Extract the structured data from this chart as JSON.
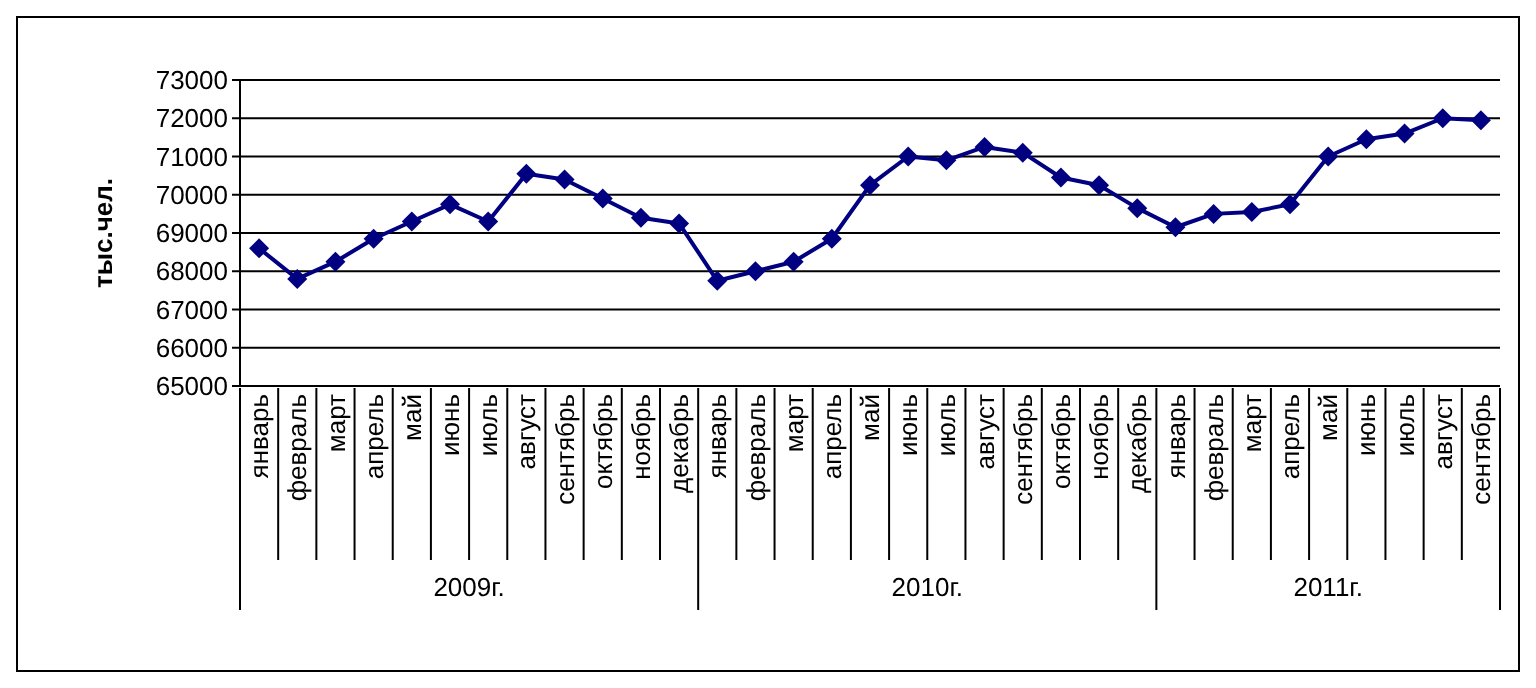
{
  "chart_data": {
    "type": "line",
    "ylabel": "тыс.чел.",
    "categories": [
      "январь",
      "февраль",
      "март",
      "апрель",
      "май",
      "июнь",
      "июль",
      "август",
      "сентябрь",
      "октябрь",
      "ноябрь",
      "декабрь",
      "январь",
      "февраль",
      "март",
      "апрель",
      "май",
      "июнь",
      "июль",
      "август",
      "сентябрь",
      "октябрь",
      "ноябрь",
      "декабрь",
      "январь",
      "февраль",
      "март",
      "апрель",
      "май",
      "июнь",
      "июль",
      "август",
      "сентябрь"
    ],
    "series": [
      {
        "color": "#000080",
        "values": [
          68600,
          67800,
          68250,
          68850,
          69300,
          69750,
          69300,
          70550,
          70400,
          69900,
          69400,
          69250,
          67750,
          68000,
          68250,
          68850,
          70250,
          71000,
          70900,
          71250,
          71100,
          70450,
          70250,
          69650,
          69150,
          69500,
          69550,
          69750,
          71000,
          71450,
          71600,
          72000,
          71950
        ]
      }
    ],
    "ylim": [
      65000,
      73000
    ],
    "yticks": [
      65000,
      66000,
      67000,
      68000,
      69000,
      70000,
      71000,
      72000,
      73000
    ],
    "grid": "y",
    "marker": "diamond",
    "line_style": "solid",
    "annotations": [
      "2009г.",
      "2010г.",
      "2011г."
    ]
  }
}
